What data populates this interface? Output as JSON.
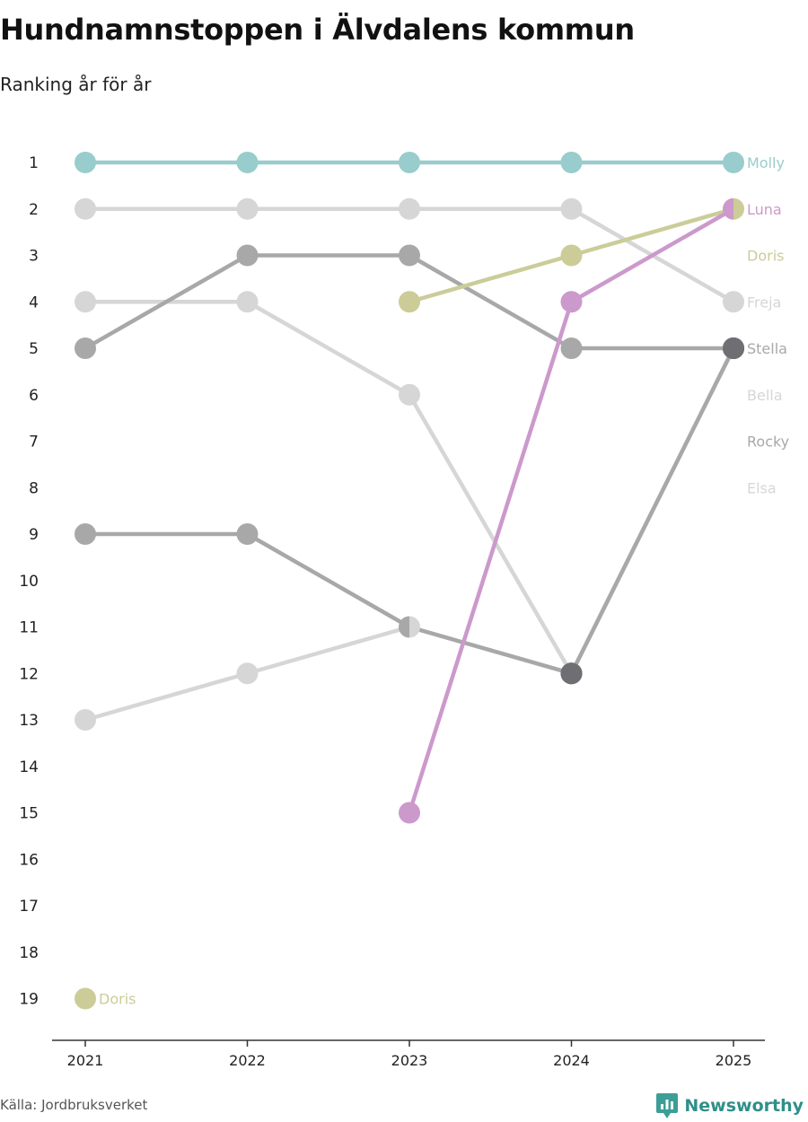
{
  "title": "Hundnamnstoppen i Älvdalens kommun",
  "subtitle": "Ranking år för år",
  "source": "Källa: Jordbruksverket",
  "brand": "Newsworthy",
  "chart_data": {
    "type": "line",
    "title": "Hundnamnstoppen i Älvdalens kommun",
    "subtitle": "Ranking år för år",
    "xlabel": "",
    "ylabel": "",
    "x": [
      "2021",
      "2022",
      "2023",
      "2024",
      "2025"
    ],
    "y_ticks": [
      "1",
      "2",
      "3",
      "4",
      "5",
      "6",
      "7",
      "8",
      "9",
      "10",
      "11",
      "12",
      "13",
      "14",
      "15",
      "16",
      "17",
      "18",
      "19"
    ],
    "ylim": [
      19,
      1
    ],
    "y_inverted": true,
    "grid": false,
    "series": [
      {
        "name": "Elsa",
        "color": "#d6d6d6",
        "values": [
          13,
          12,
          11,
          12,
          5
        ]
      },
      {
        "name": "Bella",
        "color": "#d6d6d6",
        "values": [
          4,
          4,
          6,
          12,
          5
        ]
      },
      {
        "name": "Freja",
        "color": "#d6d6d6",
        "values": [
          2,
          2,
          2,
          2,
          4
        ]
      },
      {
        "name": "Rocky",
        "color": "#a8a8a8",
        "values": [
          9,
          9,
          11,
          12,
          5
        ]
      },
      {
        "name": "Stella",
        "color": "#a8a8a8",
        "values": [
          5,
          3,
          3,
          5,
          5
        ]
      },
      {
        "name": "Doris",
        "color": "#cccc99",
        "values": [
          19,
          null,
          4,
          3,
          2
        ]
      },
      {
        "name": "Luna",
        "color": "#cc99cc",
        "values": [
          null,
          null,
          15,
          4,
          2
        ]
      },
      {
        "name": "Molly",
        "color": "#99cccc",
        "values": [
          1,
          1,
          1,
          1,
          1
        ]
      }
    ],
    "end_labels": [
      {
        "name": "Molly",
        "rank": 1,
        "color": "#99cccc"
      },
      {
        "name": "Luna",
        "rank": 2,
        "color": "#cc99cc"
      },
      {
        "name": "Doris",
        "rank": 3,
        "color": "#cccc99"
      },
      {
        "name": "Freja",
        "rank": 4,
        "color": "#d6d6d6"
      },
      {
        "name": "Stella",
        "rank": 5,
        "color": "#a8a8a8"
      },
      {
        "name": "Bella",
        "rank": 6,
        "color": "#d6d6d6"
      },
      {
        "name": "Rocky",
        "rank": 7,
        "color": "#a8a8a8"
      },
      {
        "name": "Elsa",
        "rank": 8,
        "color": "#d6d6d6"
      }
    ],
    "point_annotations": [
      {
        "series": "Doris",
        "year": "2021",
        "rank": 19,
        "text": "Doris",
        "color": "#cccc99"
      }
    ],
    "shared_point_colors": [
      {
        "year": "2025",
        "rank": 5,
        "color": "#6e6e73"
      },
      {
        "year": "2024",
        "rank": 12,
        "color": "#6e6e73"
      }
    ],
    "split_markers": [
      {
        "year": "2023",
        "rank": 11,
        "left": "#a8a8a8",
        "right": "#d6d6d6"
      },
      {
        "year": "2025",
        "rank": 2,
        "left": "#cc99cc",
        "right": "#cccc99"
      }
    ]
  }
}
